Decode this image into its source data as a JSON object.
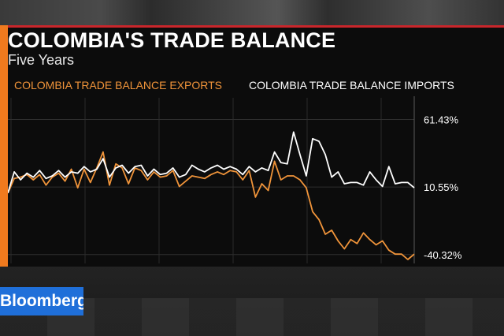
{
  "header": {
    "title": "COLOMBIA'S TRADE BALANCE",
    "subtitle": "Five Years"
  },
  "brand": {
    "logo_text": "Bloomberg",
    "logo_color": "#1f6fd9",
    "accent_color": "#f07a1e",
    "rule_color": "#c9262b"
  },
  "chart_data": {
    "type": "line",
    "title": "COLOMBIA'S TRADE BALANCE",
    "subtitle": "Five Years",
    "xlabel": "",
    "ylabel": "",
    "ylim": [
      -47,
      79
    ],
    "yticks": [
      {
        "value": 61.43,
        "label": "61.43%"
      },
      {
        "value": 10.55,
        "label": "10.55%"
      },
      {
        "value": -40.32,
        "label": "-40.32%"
      }
    ],
    "grid": true,
    "legend_position": "top",
    "series": [
      {
        "name": "COLOMBIA TRADE BALANCE EXPORTS",
        "color": "#f0943a",
        "values": [
          6,
          17,
          18,
          20,
          16,
          20,
          12,
          18,
          21,
          15,
          24,
          10,
          24,
          14,
          25,
          37,
          12,
          28,
          25,
          13,
          25,
          23,
          16,
          22,
          18,
          19,
          23,
          11,
          15,
          19,
          18,
          17,
          20,
          22,
          20,
          23,
          22,
          16,
          23,
          3,
          13,
          8,
          30,
          16,
          19,
          19,
          16,
          10,
          -8,
          -14,
          -25,
          -22,
          -30,
          -36,
          -29,
          -32,
          -24,
          -29,
          -33,
          -30,
          -37,
          -40,
          -40,
          -44,
          -40
        ]
      },
      {
        "name": "COLOMBIA TRADE BALANCE IMPORTS",
        "color": "#ffffff",
        "values": [
          6,
          22,
          16,
          21,
          18,
          23,
          17,
          19,
          23,
          18,
          22,
          21,
          26,
          22,
          24,
          32,
          18,
          25,
          27,
          21,
          26,
          27,
          19,
          24,
          20,
          21,
          25,
          18,
          20,
          27,
          24,
          22,
          25,
          27,
          24,
          26,
          24,
          20,
          26,
          22,
          25,
          23,
          37,
          29,
          28,
          52,
          35,
          19,
          47,
          45,
          35,
          18,
          22,
          13,
          14,
          14,
          12,
          22,
          16,
          11,
          26,
          13,
          14,
          14,
          10
        ]
      }
    ]
  }
}
